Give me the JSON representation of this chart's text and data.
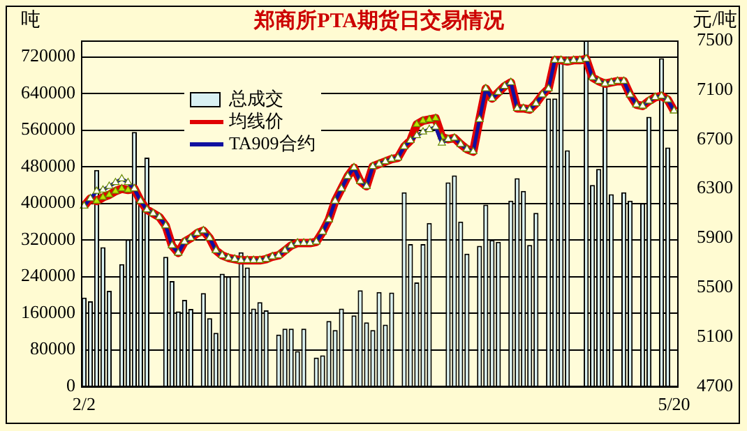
{
  "chart_data": {
    "type": "bar",
    "title": "郑商所PTA期货日交易情况",
    "ylabel": "吨",
    "y2label": "元/吨",
    "categories": [
      "2/2",
      null,
      null,
      null,
      null,
      null,
      null,
      null,
      null,
      null,
      null,
      null,
      null,
      null,
      null,
      null,
      null,
      null,
      null,
      null,
      null,
      null,
      null,
      null,
      null,
      null,
      null,
      null,
      null,
      null,
      null,
      null,
      null,
      null,
      null,
      null,
      null,
      null,
      null,
      null,
      null,
      null,
      null,
      null,
      null,
      null,
      null,
      null,
      null,
      null,
      null,
      null,
      null,
      null,
      null,
      null,
      null,
      null,
      null,
      null,
      null,
      null,
      null,
      null,
      null,
      null,
      null,
      null,
      null,
      null,
      null,
      null,
      null,
      null,
      null,
      null,
      null,
      null,
      null,
      null,
      null,
      null,
      null,
      null,
      null,
      null,
      null,
      null,
      null,
      null,
      null,
      null,
      null,
      null,
      "5/20"
    ],
    "series": [
      {
        "name": "总成交",
        "color": "#d9f1f3",
        "values": [
          194000,
          186000,
          473000,
          304000,
          209000,
          null,
          267000,
          321000,
          556000,
          400000,
          500000,
          null,
          null,
          283000,
          230000,
          164000,
          189000,
          169000,
          null,
          204000,
          149000,
          117000,
          246000,
          240000,
          null,
          293000,
          260000,
          170000,
          184000,
          166000,
          null,
          113000,
          126000,
          126000,
          77000,
          126000,
          null,
          63000,
          68000,
          143000,
          123000,
          170000,
          null,
          155000,
          210000,
          140000,
          123000,
          206000,
          135000,
          205000,
          null,
          424000,
          311000,
          227000,
          311000,
          357000,
          null,
          null,
          446000,
          461000,
          360000,
          290000,
          null,
          307000,
          397000,
          320000,
          316000,
          null,
          406000,
          455000,
          427000,
          309000,
          379000,
          null,
          629000,
          629000,
          717000,
          516000,
          null,
          null,
          756000,
          440000,
          475000,
          660000,
          420000,
          null,
          424000,
          406000,
          null,
          400000,
          589000,
          null,
          717000,
          522000,
          null
        ]
      },
      {
        "name": "均线价",
        "type": "line",
        "axis": "y2",
        "color": "#e00000",
        "marker": "triangle",
        "values": [
          6160,
          6220,
          6200,
          6230,
          6250,
          6280,
          6300,
          6290,
          6300,
          6200,
          6130,
          6100,
          6070,
          6000,
          5840,
          5780,
          5870,
          5900,
          5940,
          5960,
          5900,
          5800,
          5760,
          5740,
          5730,
          5720,
          5720,
          5720,
          5720,
          5730,
          5750,
          5760,
          5800,
          5840,
          5860,
          5860,
          5860,
          5870,
          5950,
          6050,
          6200,
          6300,
          6400,
          6470,
          6360,
          6320,
          6480,
          6500,
          6520,
          6540,
          6550,
          6640,
          6690,
          6820,
          6850,
          6860,
          6870,
          6720,
          6700,
          6710,
          6660,
          6620,
          6600,
          6860,
          7110,
          7030,
          7080,
          7130,
          7160,
          6950,
          6950,
          6940,
          6990,
          7060,
          7110,
          7340,
          7340,
          7330,
          7340,
          7340,
          7350,
          7200,
          7170,
          7150,
          7160,
          7170,
          7170,
          7060,
          6980,
          6970,
          7010,
          7040,
          7050,
          7020,
          6930
        ]
      },
      {
        "name": "TA909合约",
        "type": "line",
        "axis": "y2",
        "color": "#1010a0",
        "marker": "triangle",
        "values": [
          6160,
          6220,
          6280,
          6290,
          6320,
          6350,
          6380,
          6350,
          6300,
          6200,
          6130,
          6100,
          6070,
          6000,
          5840,
          5780,
          5870,
          5900,
          5940,
          5960,
          5900,
          5800,
          5760,
          5740,
          5730,
          5720,
          5720,
          5720,
          5720,
          5730,
          5750,
          5760,
          5800,
          5840,
          5860,
          5860,
          5860,
          5870,
          5950,
          6050,
          6200,
          6300,
          6400,
          6470,
          6360,
          6320,
          6480,
          6500,
          6520,
          6540,
          6550,
          6640,
          6690,
          6730,
          6760,
          6780,
          6800,
          6670,
          6700,
          6710,
          6660,
          6620,
          6600,
          6860,
          7110,
          7030,
          7080,
          7130,
          7160,
          6950,
          6950,
          6940,
          6990,
          7060,
          7110,
          7340,
          7340,
          7330,
          7340,
          7340,
          7350,
          7200,
          7170,
          7150,
          7160,
          7170,
          7170,
          7060,
          6980,
          6970,
          7010,
          7040,
          7050,
          7020,
          6930
        ]
      }
    ],
    "ylim": [
      0,
      756000
    ],
    "yticks": [
      0,
      80000,
      160000,
      240000,
      320000,
      400000,
      480000,
      560000,
      640000,
      720000
    ],
    "y2lim": [
      4700,
      7500
    ],
    "y2ticks": [
      4700,
      5100,
      5500,
      5900,
      6300,
      6700,
      7100,
      7500
    ],
    "grid": "y",
    "legend": "top left"
  }
}
